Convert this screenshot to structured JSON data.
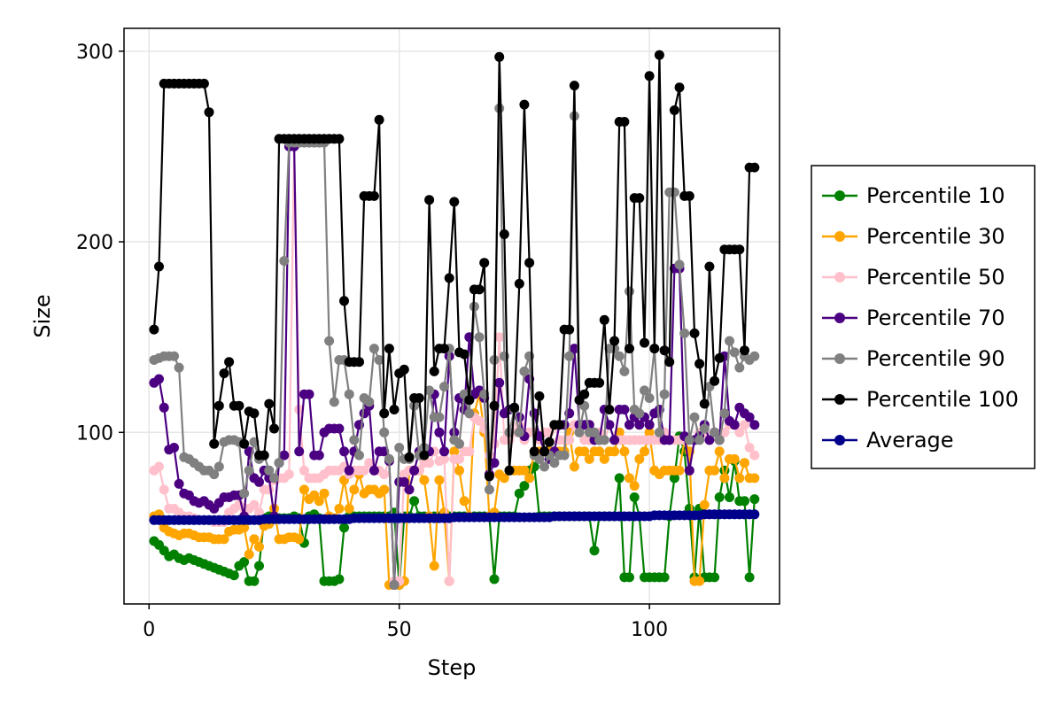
{
  "chart_data": {
    "type": "line",
    "xlabel": "Step",
    "ylabel": "Size",
    "xlim": [
      -5,
      126
    ],
    "ylim": [
      10,
      312
    ],
    "xticks": [
      0,
      50,
      100
    ],
    "yticks": [
      100,
      200,
      300
    ],
    "xtick_labels": [
      "0",
      "50",
      "100"
    ],
    "ytick_labels": [
      "100",
      "200",
      "300"
    ],
    "grid": true,
    "legend_position": "right",
    "x": [
      1,
      2,
      3,
      4,
      5,
      6,
      7,
      8,
      9,
      10,
      11,
      12,
      13,
      14,
      15,
      16,
      17,
      18,
      19,
      20,
      21,
      22,
      23,
      24,
      25,
      26,
      27,
      28,
      29,
      30,
      31,
      32,
      33,
      34,
      35,
      36,
      37,
      38,
      39,
      40,
      41,
      42,
      43,
      44,
      45,
      46,
      47,
      48,
      49,
      50,
      51,
      52,
      53,
      54,
      55,
      56,
      57,
      58,
      59,
      60,
      61,
      62,
      63,
      64,
      65,
      66,
      67,
      68,
      69,
      70,
      71,
      72,
      73,
      74,
      75,
      76,
      77,
      78,
      79,
      80,
      81,
      82,
      83,
      84,
      85,
      86,
      87,
      88,
      89,
      90,
      91,
      92,
      93,
      94,
      95,
      96,
      97,
      98,
      99,
      100,
      101,
      102,
      103,
      104,
      105,
      106,
      107,
      108,
      109,
      110,
      111,
      112,
      113,
      114,
      115,
      116,
      117,
      118,
      119,
      120,
      121
    ],
    "series": [
      {
        "name": "Percentile 10",
        "color": "#008000",
        "values": [
          43,
          41,
          38,
          35,
          36,
          34,
          33,
          34,
          33,
          32,
          31,
          30,
          29,
          28,
          27,
          26,
          25,
          30,
          32,
          22,
          22,
          30,
          55,
          56,
          55,
          55,
          55,
          55,
          56,
          55,
          42,
          56,
          57,
          55,
          22,
          22,
          22,
          23,
          50,
          56,
          56,
          56,
          56,
          56,
          56,
          56,
          56,
          56,
          58,
          20,
          56,
          56,
          64,
          56,
          56,
          56,
          56,
          56,
          56,
          56,
          56,
          56,
          56,
          56,
          56,
          56,
          56,
          56,
          23,
          56,
          56,
          56,
          56,
          68,
          72,
          80,
          82,
          56,
          56,
          56,
          56,
          56,
          56,
          56,
          56,
          56,
          56,
          56,
          38,
          56,
          56,
          56,
          56,
          76,
          24,
          24,
          66,
          56,
          24,
          24,
          24,
          24,
          24,
          56,
          76,
          98,
          90,
          60,
          24,
          60,
          24,
          24,
          24,
          66,
          80,
          66,
          85,
          64,
          64,
          24,
          65
        ]
      },
      {
        "name": "Percentile 30",
        "color": "#FFA500",
        "values": [
          56,
          57,
          50,
          48,
          47,
          46,
          47,
          47,
          46,
          45,
          45,
          45,
          44,
          44,
          44,
          48,
          49,
          49,
          50,
          36,
          44,
          40,
          51,
          52,
          60,
          44,
          44,
          45,
          45,
          44,
          70,
          65,
          67,
          64,
          68,
          56,
          55,
          60,
          75,
          60,
          70,
          78,
          68,
          70,
          70,
          68,
          70,
          20,
          20,
          20,
          22,
          80,
          80,
          80,
          75,
          56,
          30,
          75,
          58,
          22,
          90,
          80,
          64,
          56,
          110,
          120,
          100,
          56,
          58,
          78,
          76,
          80,
          80,
          80,
          80,
          76,
          90,
          90,
          90,
          90,
          90,
          90,
          90,
          100,
          82,
          90,
          90,
          86,
          90,
          90,
          86,
          90,
          90,
          100,
          90,
          76,
          72,
          86,
          90,
          100,
          80,
          78,
          80,
          80,
          80,
          80,
          96,
          90,
          22,
          22,
          62,
          80,
          80,
          90,
          76,
          86,
          86,
          76,
          84,
          76,
          76
        ]
      },
      {
        "name": "Percentile 50",
        "color": "#FFC0CB",
        "values": [
          80,
          82,
          70,
          60,
          60,
          58,
          56,
          56,
          55,
          54,
          54,
          54,
          53,
          53,
          53,
          58,
          60,
          62,
          60,
          60,
          62,
          58,
          70,
          70,
          75,
          76,
          76,
          78,
          250,
          112,
          80,
          76,
          76,
          76,
          78,
          80,
          80,
          80,
          82,
          78,
          80,
          80,
          80,
          84,
          80,
          80,
          78,
          85,
          22,
          22,
          78,
          80,
          80,
          80,
          84,
          84,
          90,
          85,
          86,
          22,
          86,
          86,
          90,
          90,
          108,
          106,
          102,
          88,
          94,
          150,
          96,
          96,
          100,
          104,
          96,
          100,
          100,
          96,
          100,
          100,
          104,
          96,
          96,
          96,
          104,
          100,
          96,
          96,
          96,
          100,
          96,
          104,
          96,
          96,
          96,
          96,
          96,
          96,
          96,
          96,
          96,
          96,
          100,
          96,
          96,
          96,
          96,
          96,
          96,
          100,
          100,
          96,
          100,
          96,
          100,
          104,
          104,
          100,
          104,
          92,
          88
        ]
      },
      {
        "name": "Percentile 70",
        "color": "#4B0082",
        "values": [
          126,
          128,
          113,
          91,
          92,
          73,
          68,
          67,
          64,
          63,
          64,
          62,
          60,
          63,
          66,
          66,
          67,
          67,
          56,
          90,
          76,
          74,
          80,
          76,
          56,
          84,
          88,
          250,
          250,
          90,
          120,
          120,
          88,
          88,
          100,
          102,
          102,
          102,
          90,
          80,
          90,
          104,
          110,
          114,
          80,
          90,
          90,
          85,
          20,
          74,
          74,
          70,
          80,
          90,
          90,
          90,
          120,
          100,
          90,
          140,
          100,
          118,
          112,
          150,
          120,
          122,
          118,
          78,
          84,
          126,
          110,
          112,
          112,
          108,
          98,
          128,
          110,
          98,
          90,
          86,
          90,
          104,
          104,
          110,
          144,
          104,
          104,
          104,
          96,
          96,
          112,
          104,
          96,
          112,
          112,
          104,
          108,
          104,
          108,
          104,
          110,
          112,
          96,
          96,
          186,
          186,
          98,
          80,
          96,
          98,
          104,
          96,
          100,
          96,
          140,
          106,
          104,
          113,
          110,
          108,
          104
        ]
      },
      {
        "name": "Percentile 90",
        "color": "#808080",
        "values": [
          138,
          139,
          140,
          140,
          140,
          134,
          87,
          86,
          84,
          82,
          80,
          80,
          78,
          82,
          95,
          96,
          96,
          95,
          68,
          80,
          95,
          86,
          88,
          80,
          76,
          84,
          190,
          252,
          252,
          252,
          252,
          252,
          252,
          252,
          252,
          148,
          116,
          138,
          138,
          120,
          96,
          88,
          118,
          116,
          144,
          138,
          100,
          86,
          20,
          92,
          86,
          86,
          114,
          88,
          92,
          122,
          108,
          108,
          124,
          144,
          96,
          94,
          120,
          110,
          166,
          150,
          120,
          70,
          138,
          270,
          140,
          100,
          112,
          100,
          132,
          140,
          88,
          86,
          82,
          88,
          84,
          88,
          88,
          140,
          266,
          100,
          114,
          100,
          100,
          96,
          96,
          144,
          144,
          140,
          132,
          174,
          112,
          110,
          122,
          118,
          144,
          100,
          120,
          226,
          226,
          188,
          152,
          96,
          108,
          96,
          102,
          124,
          100,
          96,
          110,
          148,
          142,
          134,
          140,
          138,
          140
        ]
      },
      {
        "name": "Percentile 100",
        "color": "#000000",
        "values": [
          154,
          187,
          283,
          283,
          283,
          283,
          283,
          283,
          283,
          283,
          283,
          268,
          94,
          114,
          131,
          137,
          114,
          114,
          94,
          111,
          110,
          88,
          88,
          115,
          102,
          254,
          254,
          254,
          254,
          254,
          254,
          254,
          254,
          254,
          254,
          254,
          254,
          254,
          169,
          137,
          137,
          137,
          224,
          224,
          224,
          264,
          110,
          144,
          112,
          131,
          133,
          87,
          118,
          118,
          88,
          222,
          132,
          144,
          144,
          181,
          221,
          142,
          141,
          117,
          175,
          175,
          189,
          77,
          114,
          297,
          204,
          80,
          113,
          178,
          272,
          189,
          90,
          119,
          90,
          95,
          104,
          104,
          154,
          154,
          282,
          117,
          120,
          126,
          126,
          126,
          159,
          112,
          148,
          263,
          263,
          144,
          223,
          223,
          147,
          287,
          144,
          298,
          143,
          137,
          269,
          281,
          224,
          224,
          152,
          136,
          115,
          187,
          127,
          139,
          196,
          196,
          196,
          196,
          143,
          239,
          239
        ]
      },
      {
        "name": "Average",
        "color": "#00008B",
        "values": [
          54,
          54,
          54,
          54,
          54,
          54,
          54,
          54,
          54,
          54,
          54,
          54,
          54,
          54,
          54,
          54,
          54,
          54,
          54,
          54,
          54,
          54,
          54.5,
          54.5,
          54.5,
          54.5,
          54.5,
          54.5,
          54.5,
          54.5,
          54.5,
          54.5,
          54.5,
          54.5,
          54.5,
          54.5,
          54.5,
          54.5,
          54.5,
          54.5,
          55,
          55,
          55,
          55,
          55,
          55,
          55,
          55,
          55,
          55,
          55,
          55,
          55,
          55,
          55,
          55,
          55,
          55,
          55,
          55,
          55.5,
          55.5,
          55.5,
          55.5,
          55.5,
          55.5,
          55.5,
          55.5,
          55.5,
          55.5,
          55.5,
          55.5,
          55.5,
          55.5,
          55.5,
          55.5,
          55.5,
          55.5,
          55.5,
          55.5,
          56,
          56,
          56,
          56,
          56,
          56,
          56,
          56,
          56,
          56,
          56,
          56,
          56,
          56,
          56,
          56,
          56,
          56,
          56,
          56,
          56.5,
          56.5,
          56.5,
          56.5,
          56.5,
          56.5,
          56.5,
          56.5,
          56.5,
          56.5,
          57,
          57,
          57,
          57,
          57,
          57,
          57,
          57,
          57,
          57,
          57
        ]
      }
    ]
  }
}
